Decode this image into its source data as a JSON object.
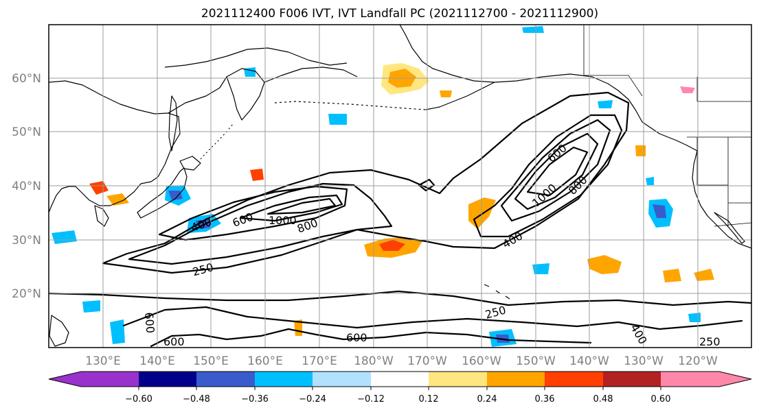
{
  "title": "2021112400 F006 IVT, IVT Landfall PC (2021112700 - 2021112900)",
  "lat_labels": [
    "60°N",
    "50°N",
    "40°N",
    "30°N",
    "20°N"
  ],
  "lon_labels": [
    "130°E",
    "140°E",
    "150°E",
    "160°E",
    "170°E",
    "180°W",
    "170°W",
    "160°W",
    "150°W",
    "140°W",
    "130°W",
    "120°W"
  ],
  "colorbar": {
    "ticks": [
      "−0.60",
      "−0.48",
      "−0.36",
      "−0.24",
      "−0.12",
      "0.12",
      "0.24",
      "0.36",
      "0.48",
      "0.60"
    ],
    "colors": [
      "#9932cc",
      "#00008b",
      "#3a5bcc",
      "#00bfff",
      "#b0e2ff",
      "#ffffff",
      "#ffe680",
      "#ffa500",
      "#ff4000",
      "#b22222",
      "#ff88aa"
    ]
  },
  "contour_labels": [
    "400",
    "600",
    "1000",
    "800",
    "250",
    "600",
    "1000",
    "800",
    "400",
    "250",
    "600",
    "600",
    "400",
    "250",
    "600"
  ]
}
